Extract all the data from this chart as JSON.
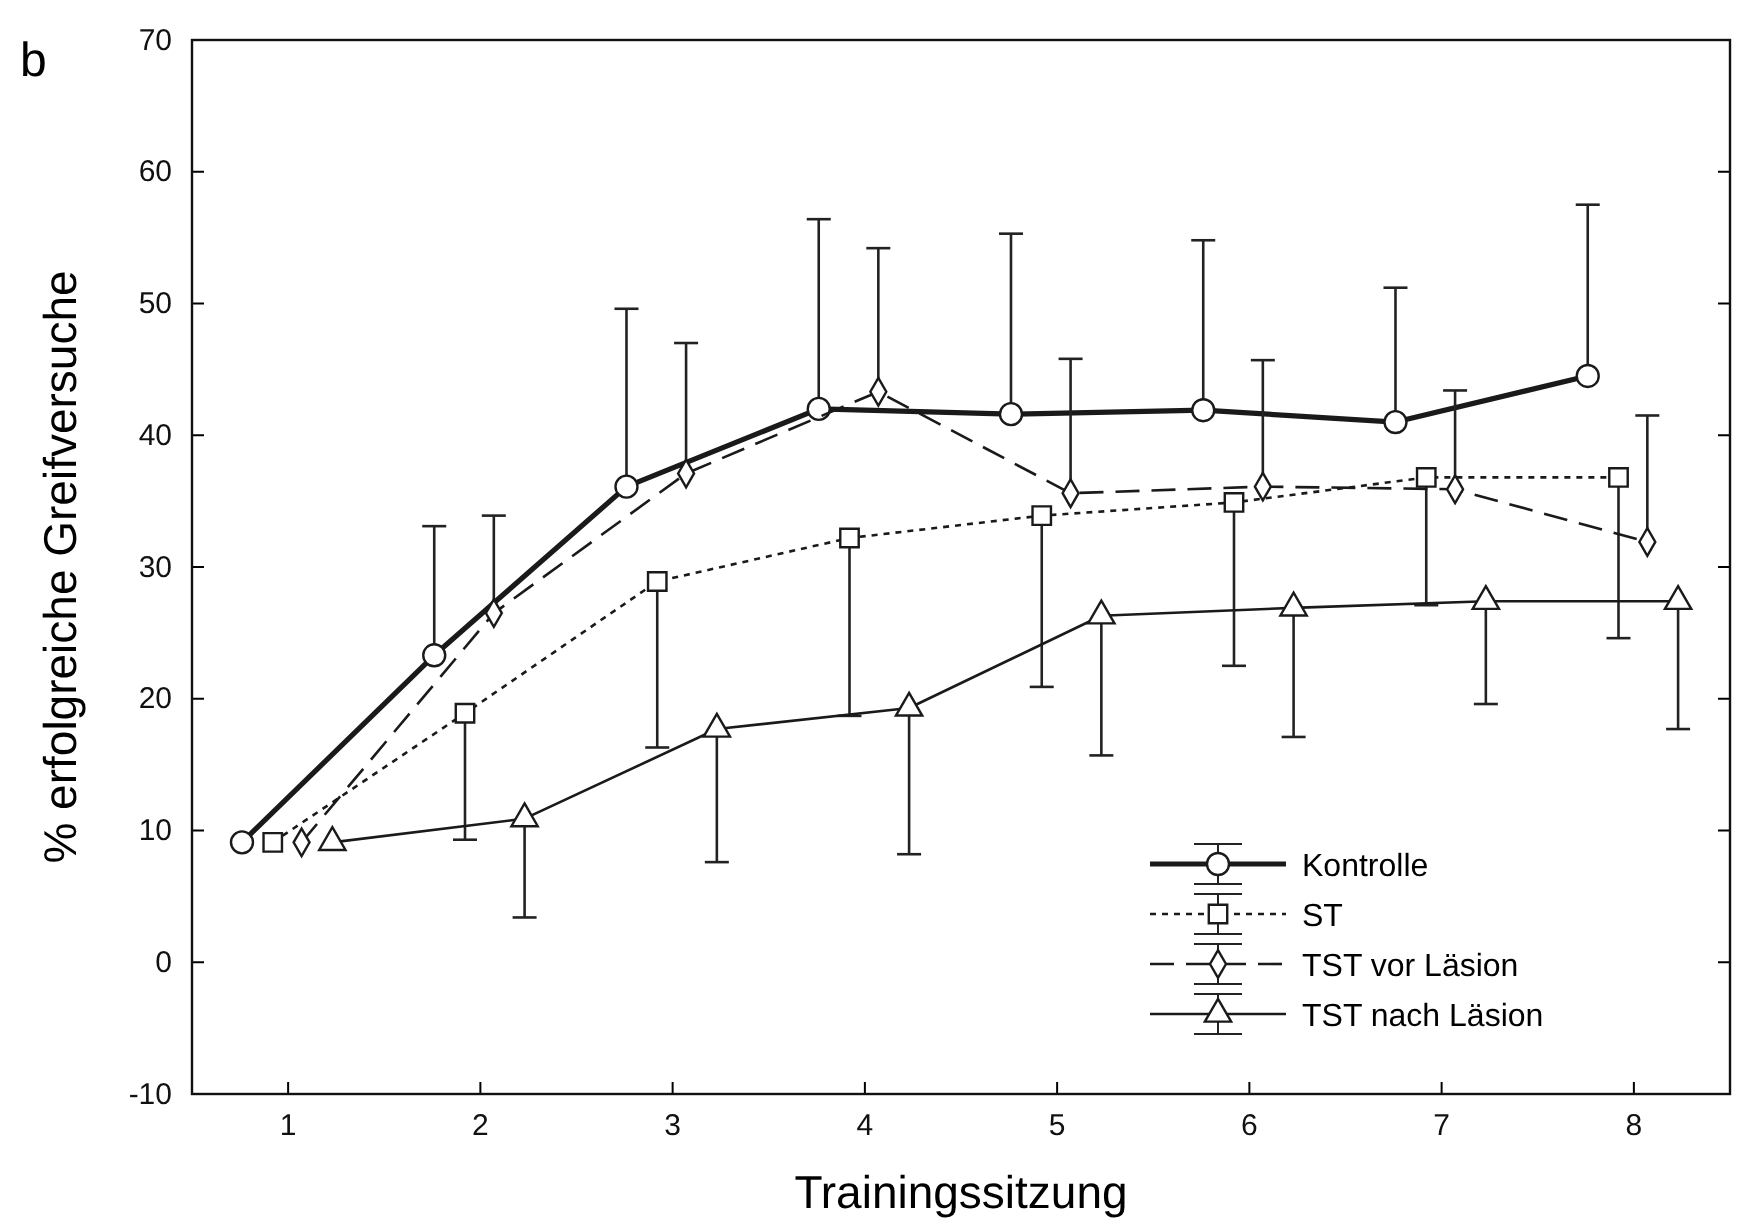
{
  "chart_data": {
    "type": "line",
    "title": "b",
    "xlabel": "Trainingssitzung",
    "ylabel": "% erfolgreiche Greifversuche",
    "xlim": [
      0.5,
      8.5
    ],
    "xticks": [
      1,
      2,
      3,
      4,
      5,
      6,
      7,
      8
    ],
    "ylim": [
      -10,
      70
    ],
    "yticks": [
      -10,
      0,
      10,
      20,
      30,
      40,
      50,
      60,
      70
    ],
    "grid": false,
    "legend": "bottom right",
    "series": [
      {
        "name": "Kontrolle",
        "color": "#1a1a1a",
        "marker": "circle",
        "line_style": "solid",
        "x": [
          0.76,
          1.76,
          2.76,
          3.76,
          4.76,
          5.76,
          6.76,
          7.76
        ],
        "values": [
          9.1,
          23.3,
          36.1,
          42.0,
          41.6,
          41.9,
          41.0,
          44.5
        ],
        "errors": [
          null,
          [
            23.3,
            33.1
          ],
          [
            36.1,
            49.6
          ],
          [
            42.0,
            56.4
          ],
          [
            41.6,
            55.3
          ],
          [
            41.9,
            54.8
          ],
          [
            41.0,
            51.2
          ],
          [
            44.5,
            57.5
          ]
        ]
      },
      {
        "name": "ST",
        "color": "#1a1a1a",
        "marker": "square",
        "line_style": "dotted",
        "x": [
          0.92,
          1.92,
          2.92,
          3.92,
          4.92,
          5.92,
          6.92,
          7.92
        ],
        "values": [
          9.1,
          18.9,
          28.9,
          32.2,
          33.9,
          34.9,
          36.8,
          36.8
        ],
        "errors": [
          null,
          [
            9.3,
            18.9
          ],
          [
            16.3,
            28.9
          ],
          [
            18.7,
            32.2
          ],
          [
            20.9,
            33.9
          ],
          [
            22.5,
            34.9
          ],
          [
            27.1,
            36.8
          ],
          [
            24.6,
            36.8
          ]
        ]
      },
      {
        "name": "TST vor Läsion",
        "color": "#1a1a1a",
        "marker": "diamond",
        "line_style": "dashed",
        "x": [
          1.07,
          2.07,
          3.07,
          4.07,
          5.07,
          6.07,
          7.07,
          8.07
        ],
        "values": [
          9.1,
          26.5,
          37.1,
          43.3,
          35.6,
          36.1,
          35.9,
          31.9
        ],
        "errors": [
          null,
          [
            26.5,
            33.9
          ],
          [
            37.1,
            47.0
          ],
          [
            43.3,
            54.2
          ],
          [
            35.6,
            45.8
          ],
          [
            36.1,
            45.7
          ],
          [
            35.9,
            43.4
          ],
          [
            31.9,
            41.5
          ]
        ]
      },
      {
        "name": "TST nach Läsion",
        "color": "#1a1a1a",
        "marker": "triangle",
        "line_style": "solid",
        "x": [
          1.23,
          2.23,
          3.23,
          4.23,
          5.23,
          6.23,
          7.23,
          8.23
        ],
        "values": [
          9.1,
          10.9,
          17.7,
          19.3,
          26.3,
          26.9,
          27.4,
          27.4
        ],
        "errors": [
          null,
          [
            3.4,
            10.9
          ],
          [
            7.6,
            17.7
          ],
          [
            8.2,
            19.3
          ],
          [
            15.7,
            26.3
          ],
          [
            17.1,
            26.9
          ],
          [
            19.6,
            27.4
          ],
          [
            17.7,
            27.4
          ]
        ]
      }
    ]
  }
}
